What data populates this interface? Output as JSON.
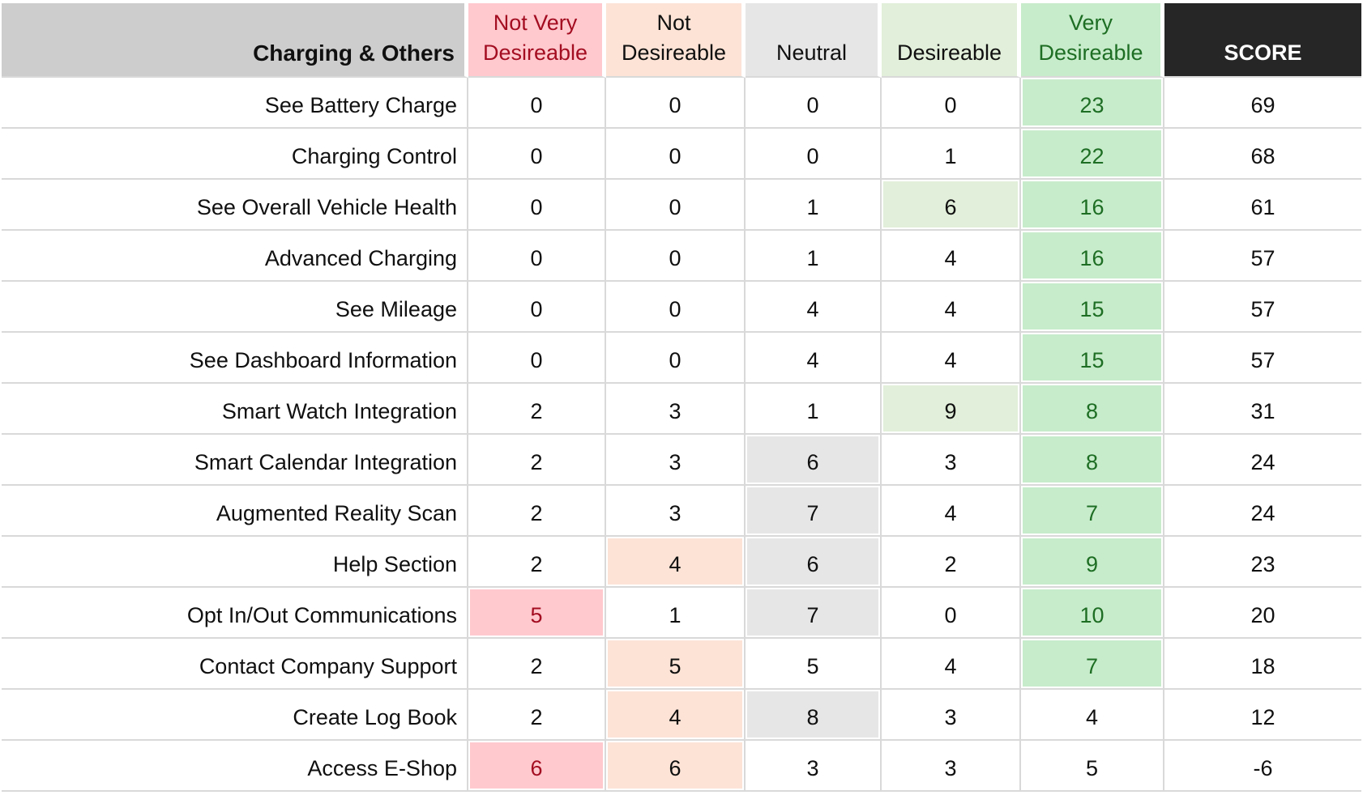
{
  "chart_data": {
    "type": "table",
    "title": "Charging & Others",
    "columns": [
      {
        "label": "Not Very Desireable",
        "style": "bad"
      },
      {
        "label": "Not Desireable",
        "style": "poor"
      },
      {
        "label": "Neutral",
        "style": "neutral"
      },
      {
        "label": "Desireable",
        "style": "good"
      },
      {
        "label": "Very Desireable",
        "style": "best"
      },
      {
        "label": "SCORE",
        "style": "score"
      }
    ],
    "rows": [
      {
        "feature": "See Battery Charge",
        "values": [
          0,
          0,
          0,
          0,
          23
        ],
        "highlighted": [
          false,
          false,
          false,
          false,
          true
        ],
        "score": 69
      },
      {
        "feature": "Charging Control",
        "values": [
          0,
          0,
          0,
          1,
          22
        ],
        "highlighted": [
          false,
          false,
          false,
          false,
          true
        ],
        "score": 68
      },
      {
        "feature": "See Overall Vehicle Health",
        "values": [
          0,
          0,
          1,
          6,
          16
        ],
        "highlighted": [
          false,
          false,
          false,
          true,
          true
        ],
        "score": 61
      },
      {
        "feature": "Advanced Charging",
        "values": [
          0,
          0,
          1,
          4,
          16
        ],
        "highlighted": [
          false,
          false,
          false,
          false,
          true
        ],
        "score": 57
      },
      {
        "feature": "See Mileage",
        "values": [
          0,
          0,
          4,
          4,
          15
        ],
        "highlighted": [
          false,
          false,
          false,
          false,
          true
        ],
        "score": 57
      },
      {
        "feature": "See Dashboard Information",
        "values": [
          0,
          0,
          4,
          4,
          15
        ],
        "highlighted": [
          false,
          false,
          false,
          false,
          true
        ],
        "score": 57
      },
      {
        "feature": "Smart Watch Integration",
        "values": [
          2,
          3,
          1,
          9,
          8
        ],
        "highlighted": [
          false,
          false,
          false,
          true,
          true
        ],
        "score": 31
      },
      {
        "feature": "Smart Calendar Integration",
        "values": [
          2,
          3,
          6,
          3,
          8
        ],
        "highlighted": [
          false,
          false,
          true,
          false,
          true
        ],
        "score": 24
      },
      {
        "feature": "Augmented Reality Scan",
        "values": [
          2,
          3,
          7,
          4,
          7
        ],
        "highlighted": [
          false,
          false,
          true,
          false,
          true
        ],
        "score": 24
      },
      {
        "feature": "Help Section",
        "values": [
          2,
          4,
          6,
          2,
          9
        ],
        "highlighted": [
          false,
          true,
          true,
          false,
          true
        ],
        "score": 23
      },
      {
        "feature": "Opt In/Out Communications",
        "values": [
          5,
          1,
          7,
          0,
          10
        ],
        "highlighted": [
          true,
          false,
          true,
          false,
          true
        ],
        "score": 20
      },
      {
        "feature": "Contact Company Support",
        "values": [
          2,
          5,
          5,
          4,
          7
        ],
        "highlighted": [
          false,
          true,
          false,
          false,
          true
        ],
        "score": 18
      },
      {
        "feature": "Create Log Book",
        "values": [
          2,
          4,
          8,
          3,
          4
        ],
        "highlighted": [
          false,
          true,
          true,
          false,
          false
        ],
        "score": 12
      },
      {
        "feature": "Access E-Shop",
        "values": [
          6,
          6,
          3,
          3,
          5
        ],
        "highlighted": [
          true,
          true,
          false,
          false,
          false
        ],
        "score": -6
      }
    ],
    "colors": {
      "header_label_bg": "#cdcdcd",
      "bad_bg": "#ffc9ce",
      "bad_text": "#a30d21",
      "poor_bg": "#fce3d6",
      "neutral_bg": "#e7e6e6",
      "good_bg": "#e2efda",
      "best_bg": "#c7eccb",
      "best_text": "#1e6e24",
      "score_bg": "#262626",
      "score_text": "#ffffff"
    },
    "layout": {
      "grid": true,
      "legend": "none",
      "value_align": "center",
      "label_align": "right"
    }
  }
}
